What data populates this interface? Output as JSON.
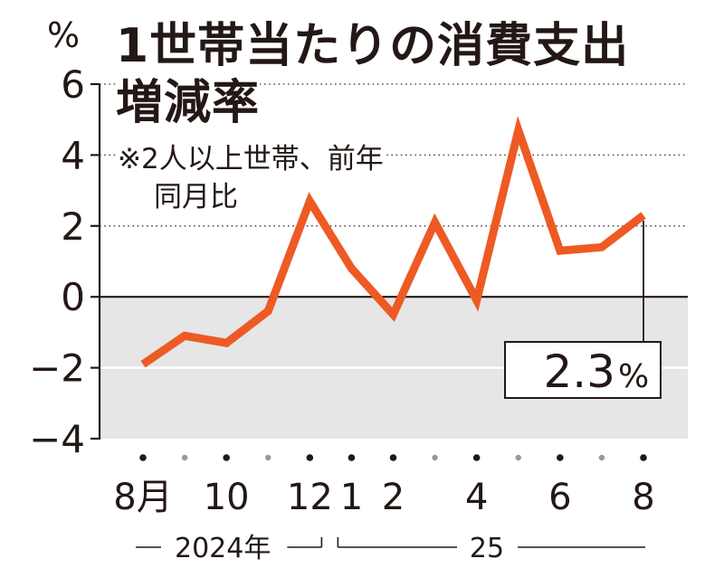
{
  "chart_data": {
    "type": "line",
    "title_lines": [
      "1世帯当たりの消費支出",
      "増減率"
    ],
    "note_lines": [
      "※2人以上世帯、前年",
      "同月比"
    ],
    "y_unit": "%",
    "ylim": [
      -4,
      6
    ],
    "y_ticks": [
      "6",
      "4",
      "2",
      "0",
      "−2",
      "−4"
    ],
    "y_tick_values": [
      6,
      4,
      2,
      0,
      -2,
      -4
    ],
    "x": [
      "2024-08",
      "2024-09",
      "2024-10",
      "2024-11",
      "2024-12",
      "2025-01",
      "2025-02",
      "2025-03",
      "2025-04",
      "2025-05",
      "2025-06",
      "2025-07",
      "2025-08"
    ],
    "x_tick_labels": [
      "8月",
      "",
      "10",
      "",
      "12",
      "1",
      "2",
      "",
      "4",
      "",
      "6",
      "",
      "8"
    ],
    "series": [
      {
        "values": [
          -1.9,
          -1.1,
          -1.3,
          -0.4,
          2.7,
          0.8,
          -0.5,
          2.1,
          -0.1,
          4.7,
          1.3,
          1.4,
          2.3
        ]
      }
    ],
    "period_labels": [
      "2024年",
      "25"
    ],
    "callout": {
      "value": "2.3",
      "unit": "%"
    },
    "negative_shading": true,
    "gridlines": "dotted",
    "colors": {
      "line": "#ee5a24",
      "shade": "#e6e6e6",
      "axis": "#231815"
    }
  }
}
